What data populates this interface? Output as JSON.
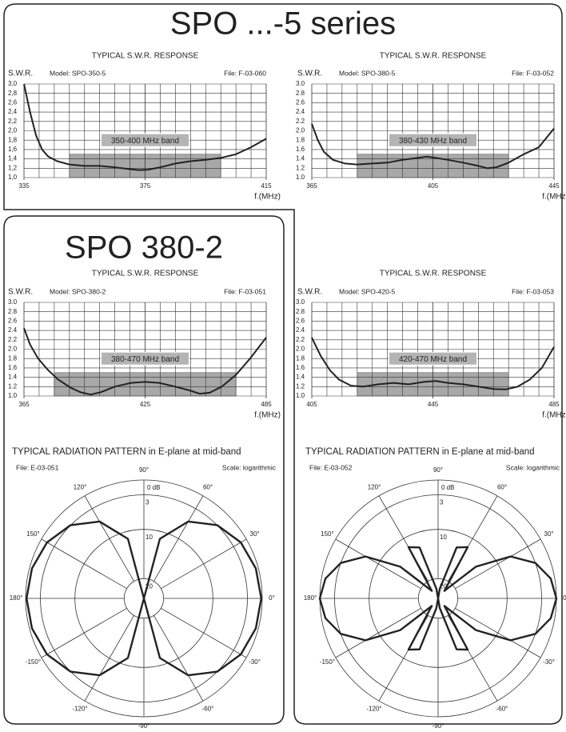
{
  "header": {
    "series_title": "SPO ...-5 series",
    "model_title": "SPO 380-2"
  },
  "chart_data": [
    {
      "type": "line",
      "title": "TYPICAL S.W.R. RESPONSE",
      "y_label": "S.W.R.",
      "model": "Model: SPO-350-5",
      "file": "File: F-03-060",
      "x_label": "f.(MHz)",
      "band_label": "350-400 MHz band",
      "band": [
        350,
        400
      ],
      "band_top": 1.5,
      "color": "#222",
      "x": [
        335,
        337,
        339,
        341,
        343,
        346,
        350,
        355,
        360,
        365,
        370,
        373,
        376,
        380,
        385,
        390,
        395,
        400,
        405,
        410,
        415
      ],
      "values": [
        3.0,
        2.4,
        1.9,
        1.6,
        1.45,
        1.35,
        1.28,
        1.25,
        1.25,
        1.22,
        1.18,
        1.16,
        1.17,
        1.22,
        1.3,
        1.35,
        1.38,
        1.42,
        1.5,
        1.65,
        1.83
      ],
      "xlim": [
        335,
        415
      ],
      "xticks": [
        335,
        375,
        415
      ],
      "xminor": [
        340,
        345,
        350,
        355,
        360,
        365,
        370,
        380,
        385,
        390,
        395,
        400,
        405,
        410
      ],
      "ylim": [
        1,
        3
      ],
      "yticks": [
        {
          "value": 1.0,
          "label": "1,0"
        },
        {
          "value": 1.2,
          "label": "1,2"
        },
        {
          "value": 1.4,
          "label": "1,4"
        },
        {
          "value": 1.6,
          "label": "1,6"
        },
        {
          "value": 1.8,
          "label": "1,8"
        },
        {
          "value": 2.0,
          "label": "2,0"
        },
        {
          "value": 2.2,
          "label": "2,2"
        },
        {
          "value": 2.4,
          "label": "2,4"
        },
        {
          "value": 2.6,
          "label": "2,6"
        },
        {
          "value": 2.8,
          "label": "2,8"
        },
        {
          "value": 3.0,
          "label": "3,0"
        }
      ]
    },
    {
      "type": "line",
      "title": "TYPICAL S.W.R. RESPONSE",
      "y_label": "S.W.R.",
      "model": "Model: SPO-380-5",
      "file": "File: F-03-052",
      "x_label": "f.(MHz)",
      "band_label": "380-430 MHz band",
      "band": [
        380,
        430
      ],
      "band_top": 1.5,
      "color": "#222",
      "x": [
        365,
        367,
        369,
        372,
        376,
        380,
        385,
        390,
        395,
        400,
        403,
        406,
        410,
        415,
        420,
        423,
        426,
        430,
        435,
        440,
        445
      ],
      "values": [
        2.15,
        1.8,
        1.55,
        1.38,
        1.3,
        1.28,
        1.3,
        1.32,
        1.38,
        1.42,
        1.45,
        1.42,
        1.38,
        1.32,
        1.25,
        1.2,
        1.22,
        1.32,
        1.5,
        1.65,
        2.05
      ],
      "xlim": [
        365,
        445
      ],
      "xticks": [
        365,
        405,
        445
      ],
      "xminor": [
        370,
        375,
        380,
        385,
        390,
        395,
        400,
        410,
        415,
        420,
        425,
        430,
        435,
        440
      ],
      "ylim": [
        1,
        3
      ],
      "yticks": [
        {
          "value": 1.0,
          "label": "1.0"
        },
        {
          "value": 1.2,
          "label": "1.2"
        },
        {
          "value": 1.4,
          "label": "1.4"
        },
        {
          "value": 1.6,
          "label": "1.6"
        },
        {
          "value": 1.8,
          "label": "1.8"
        },
        {
          "value": 2.0,
          "label": "2.0"
        },
        {
          "value": 2.2,
          "label": "2.2"
        },
        {
          "value": 2.4,
          "label": "2.4"
        },
        {
          "value": 2.6,
          "label": "2.6"
        },
        {
          "value": 2.8,
          "label": "2.8"
        },
        {
          "value": 3.0,
          "label": "3.0"
        }
      ]
    },
    {
      "type": "line",
      "title": "TYPICAL S.W.R. RESPONSE",
      "y_label": "S.W.R.",
      "model": "Model: SPO-380-2",
      "file": "File: F-03-051",
      "x_label": "f.(MHz)",
      "band_label": "380-470 MHz band",
      "band": [
        380,
        470
      ],
      "band_top": 1.5,
      "color": "#222",
      "x": [
        365,
        368,
        372,
        377,
        382,
        388,
        393,
        398,
        403,
        410,
        418,
        425,
        432,
        440,
        447,
        452,
        457,
        463,
        470,
        477,
        485
      ],
      "values": [
        2.45,
        2.1,
        1.8,
        1.55,
        1.35,
        1.18,
        1.08,
        1.03,
        1.08,
        1.2,
        1.28,
        1.3,
        1.28,
        1.2,
        1.12,
        1.05,
        1.07,
        1.2,
        1.45,
        1.8,
        2.25
      ],
      "xlim": [
        365,
        485
      ],
      "xticks": [
        365,
        425,
        485
      ],
      "xminor": [
        372.5,
        380,
        387.5,
        395,
        402.5,
        410,
        417.5,
        432.5,
        440,
        447.5,
        455,
        462.5,
        470,
        477.5
      ],
      "ylim": [
        1,
        3
      ],
      "yticks": [
        {
          "value": 1.0,
          "label": "1.0"
        },
        {
          "value": 1.2,
          "label": "1.2"
        },
        {
          "value": 1.4,
          "label": "1.4"
        },
        {
          "value": 1.6,
          "label": "1.6"
        },
        {
          "value": 1.8,
          "label": "1.8"
        },
        {
          "value": 2.0,
          "label": "2.0"
        },
        {
          "value": 2.2,
          "label": "2.2"
        },
        {
          "value": 2.4,
          "label": "2.4"
        },
        {
          "value": 2.6,
          "label": "2.6"
        },
        {
          "value": 2.8,
          "label": "2.8"
        },
        {
          "value": 3.0,
          "label": "3.0"
        }
      ]
    },
    {
      "type": "line",
      "title": "TYPICAL S.W.R. RESPONSE",
      "y_label": "S.W.R.",
      "model": "Model: SPO-420-5",
      "file": "File: F-03-053",
      "x_label": "f.(MHz)",
      "band_label": "420-470 MHz band",
      "band": [
        420,
        470
      ],
      "band_top": 1.5,
      "color": "#222",
      "x": [
        405,
        408,
        411,
        414,
        418,
        422,
        427,
        432,
        437,
        442,
        446,
        450,
        455,
        460,
        465,
        469,
        473,
        477,
        481,
        485
      ],
      "values": [
        2.25,
        1.85,
        1.55,
        1.35,
        1.22,
        1.2,
        1.25,
        1.28,
        1.25,
        1.3,
        1.32,
        1.28,
        1.25,
        1.2,
        1.15,
        1.14,
        1.2,
        1.35,
        1.6,
        2.05
      ],
      "xlim": [
        405,
        485
      ],
      "xticks": [
        405,
        445,
        485
      ],
      "xminor": [
        410,
        415,
        420,
        425,
        430,
        435,
        440,
        450,
        455,
        460,
        465,
        470,
        475,
        480
      ],
      "ylim": [
        1,
        3
      ],
      "yticks": [
        {
          "value": 1.0,
          "label": "1.0"
        },
        {
          "value": 1.2,
          "label": "1.2"
        },
        {
          "value": 1.4,
          "label": "1.4"
        },
        {
          "value": 1.6,
          "label": "1.6"
        },
        {
          "value": 1.8,
          "label": "1.8"
        },
        {
          "value": 2.0,
          "label": "2.0"
        },
        {
          "value": 2.2,
          "label": "2.2"
        },
        {
          "value": 2.4,
          "label": "2.4"
        },
        {
          "value": 2.6,
          "label": "2.6"
        },
        {
          "value": 2.8,
          "label": "2.8"
        },
        {
          "value": 3.0,
          "label": "3.0"
        }
      ]
    },
    {
      "type": "polar",
      "title": "TYPICAL RADIATION PATTERN in E-plane at mid-band",
      "file": "File: E-03-051",
      "scale_label": "Scale: logarithmic",
      "color": "#222",
      "theta": [
        0,
        15,
        30,
        45,
        60,
        75,
        90,
        105,
        120,
        135,
        150,
        165,
        180,
        195,
        210,
        225,
        240,
        255,
        270,
        285,
        300,
        315,
        330,
        345
      ],
      "values": [
        0.2,
        0.5,
        1.3,
        3,
        6,
        11.5,
        24,
        11.5,
        6,
        3,
        1.3,
        0.5,
        0.2,
        0.5,
        1.3,
        3,
        6,
        11.5,
        24,
        11.5,
        6,
        3,
        1.3,
        0.5
      ],
      "rlim": [
        0,
        24
      ],
      "rticks": [
        {
          "value": 0,
          "label": "0 dB"
        },
        3,
        10,
        20
      ],
      "angle_ticks": [
        {
          "value": 0,
          "label": "0°"
        },
        {
          "value": 30,
          "label": "30°"
        },
        {
          "value": 60,
          "label": "60°"
        },
        {
          "value": 90,
          "label": "90°"
        },
        {
          "value": 120,
          "label": "120°"
        },
        {
          "value": 150,
          "label": "150°"
        },
        {
          "value": 180,
          "label": "180°"
        },
        {
          "value": -150,
          "label": "-150°"
        },
        {
          "value": -120,
          "label": "-120°"
        },
        {
          "value": -90,
          "label": "-90°"
        },
        {
          "value": -60,
          "label": "-60°"
        },
        {
          "value": -30,
          "label": "-30°"
        }
      ]
    },
    {
      "type": "polar",
      "title": "TYPICAL RADIATION PATTERN in E-plane at  mid-band",
      "file": "File: E-03-052",
      "scale_label": "Scale: logarithmic",
      "color": "#222",
      "theta": [
        0,
        10,
        20,
        30,
        40,
        50,
        60,
        70,
        80,
        90,
        100,
        110,
        120,
        130,
        140,
        150,
        160,
        170,
        180,
        190,
        200,
        210,
        220,
        230,
        240,
        250,
        260,
        270,
        280,
        290,
        300,
        310,
        320,
        330,
        340,
        350
      ],
      "values": [
        0,
        0.8,
        3,
        7,
        14,
        22,
        12,
        13,
        22,
        24,
        22,
        13,
        12,
        22,
        14,
        7,
        3,
        0.8,
        0,
        0.8,
        3,
        7,
        14,
        22,
        12,
        13,
        22,
        24,
        22,
        13,
        12,
        22,
        14,
        7,
        3,
        0.8
      ],
      "rlim": [
        0,
        24
      ],
      "rticks": [
        {
          "value": 0,
          "label": "0 dB"
        },
        3,
        10,
        20
      ],
      "angle_ticks": [
        {
          "value": 0,
          "label": "0°"
        },
        {
          "value": 30,
          "label": "30°"
        },
        {
          "value": 60,
          "label": "60°"
        },
        {
          "value": 90,
          "label": "90°"
        },
        {
          "value": 120,
          "label": "120°"
        },
        {
          "value": 150,
          "label": "150°"
        },
        {
          "value": 180,
          "label": "180°"
        },
        {
          "value": -150,
          "label": "-150°"
        },
        {
          "value": -120,
          "label": "-120°"
        },
        {
          "value": -90,
          "label": "-90°"
        },
        {
          "value": -60,
          "label": "-60°"
        },
        {
          "value": -30,
          "label": "-30°"
        }
      ]
    }
  ]
}
